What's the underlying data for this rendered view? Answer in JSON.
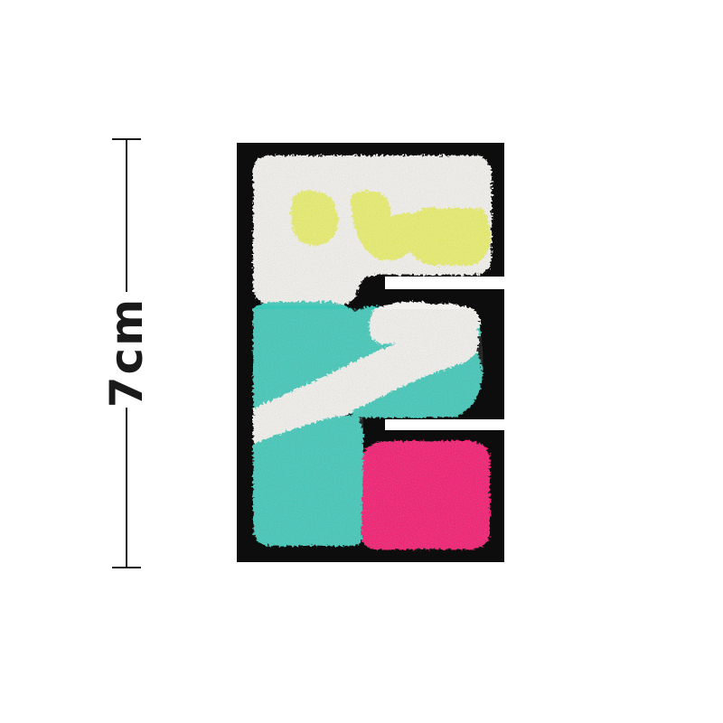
{
  "measurement": {
    "label": "7cm"
  },
  "patch": {
    "letter": "E",
    "colors": {
      "backing": "#0d0d0d",
      "white": "#f4f2ee",
      "yellow": "#e9ef6a",
      "teal": "#3cc8b8",
      "pink": "#f4156e"
    }
  }
}
